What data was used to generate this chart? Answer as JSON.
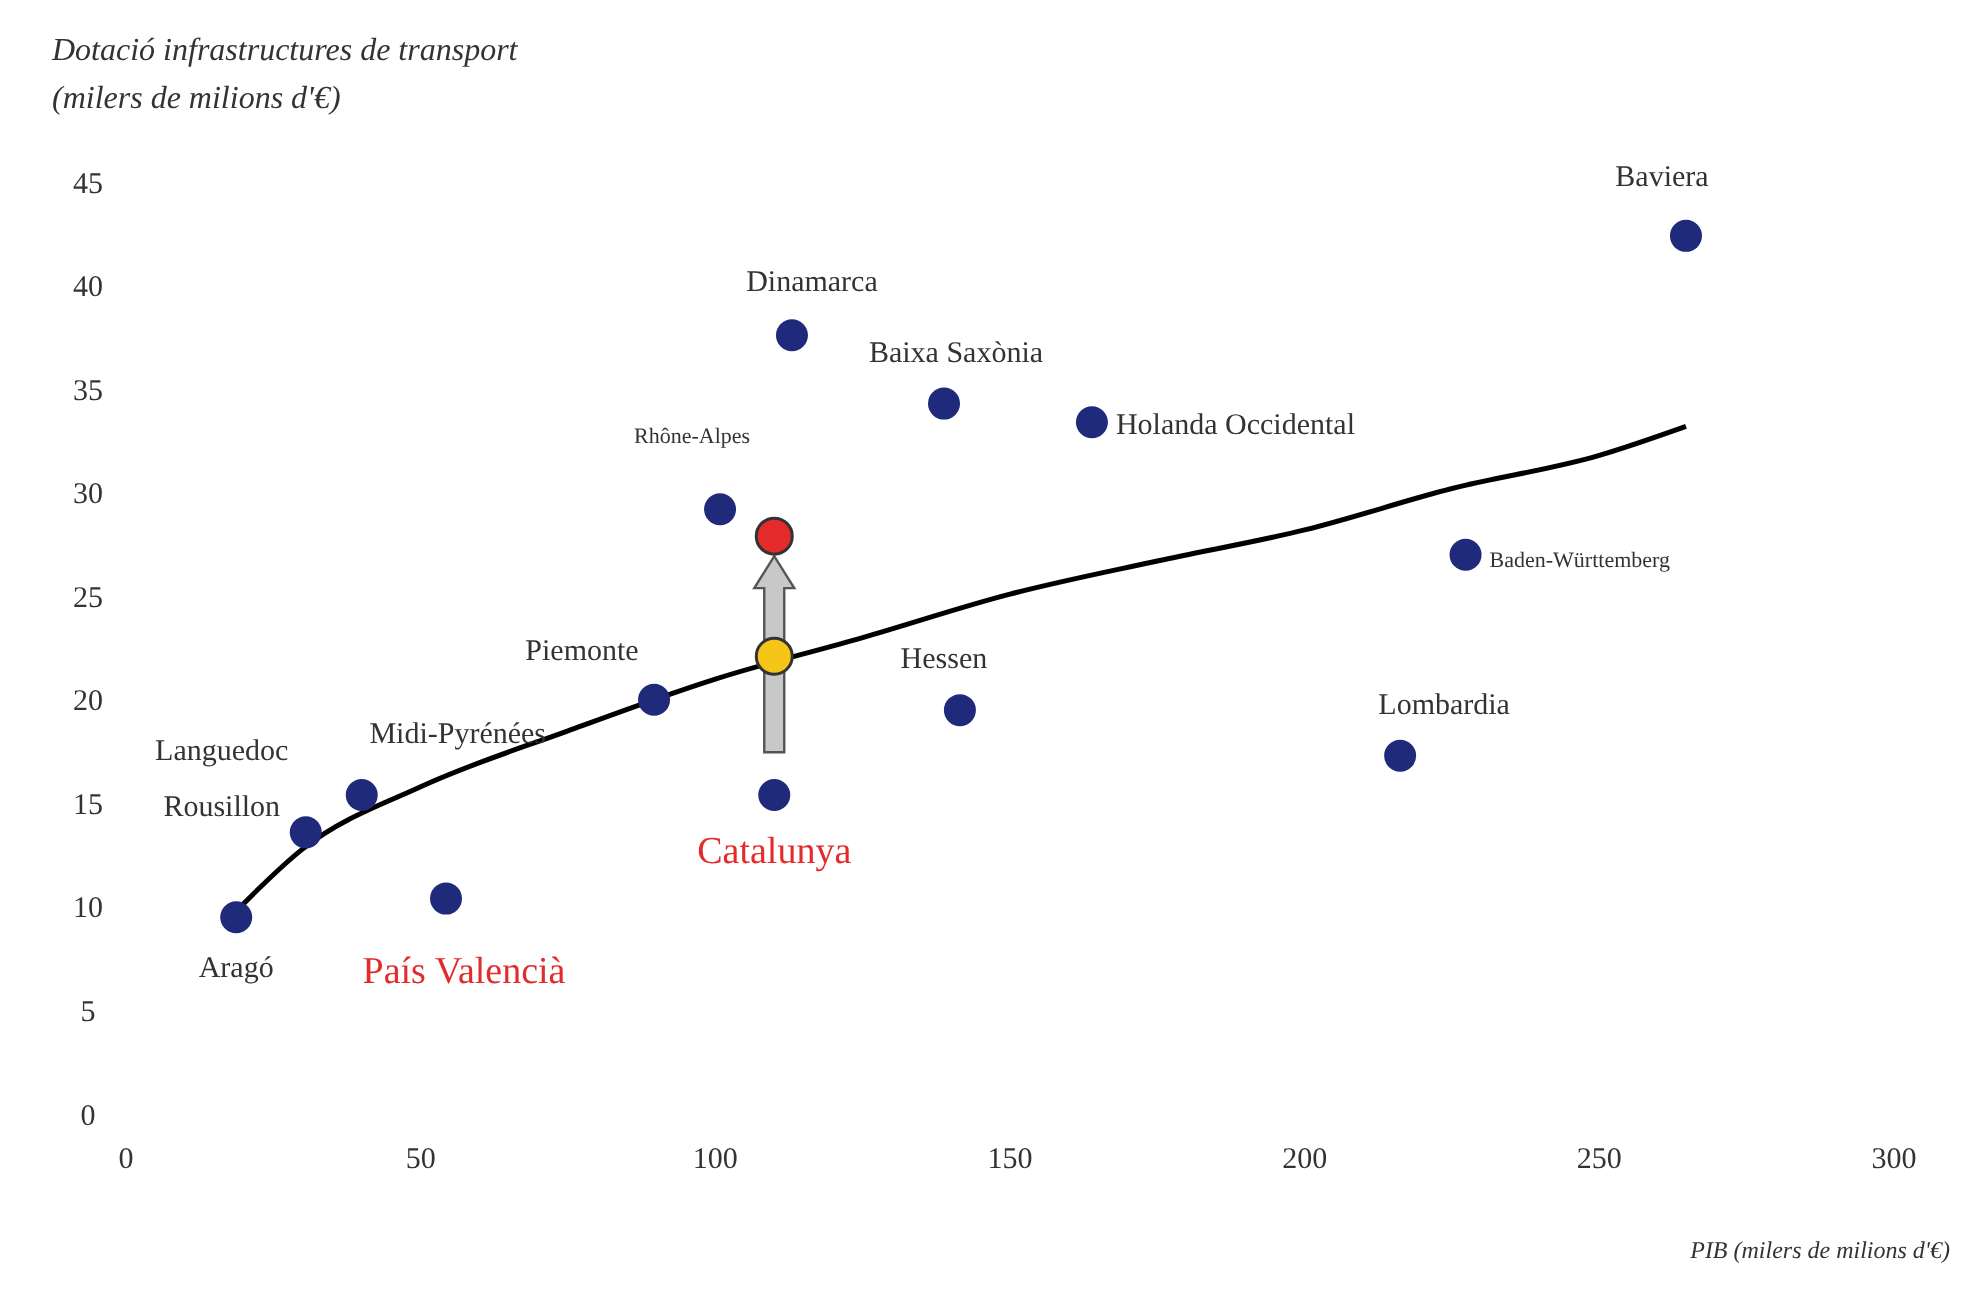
{
  "chart_data": {
    "type": "scatter",
    "ylabel": "Dotació infrastructures de transport\n(milers de milions d'€)",
    "xlabel": "PIB (milers de milions d'€)",
    "xlim": [
      0,
      300
    ],
    "xticks": [
      0,
      50,
      100,
      150,
      200,
      250,
      300
    ],
    "ylim": [
      0,
      45
    ],
    "yticks": [
      0,
      5,
      10,
      15,
      20,
      25,
      30,
      35,
      40,
      45
    ],
    "grid": false,
    "series": [
      {
        "type": "scatter",
        "color": "#1f2a7a",
        "x": [
          18.7,
          30.5,
          40,
          54.3,
          89.6,
          100.8,
          110,
          113,
          138.8,
          141.5,
          163.9,
          216.2,
          227.3,
          264.7
        ],
        "values": [
          9.5,
          13.6,
          15.4,
          10.4,
          20,
          29.2,
          15.4,
          37.6,
          34.3,
          19.5,
          33.4,
          17.3,
          27,
          42.4
        ]
      },
      {
        "type": "scatter",
        "color": "#f5c518",
        "x": [
          110
        ],
        "values": [
          22.1
        ]
      },
      {
        "type": "scatter",
        "color": "#e32b2b",
        "x": [
          110
        ],
        "values": [
          27.9
        ]
      },
      {
        "type": "line",
        "color": "#000000",
        "x": [
          18.7,
          30,
          50,
          75,
          100,
          125,
          150,
          175,
          200,
          225,
          250,
          264.7
        ],
        "values": [
          9.8,
          12.8,
          15.8,
          18.5,
          21,
          23,
          25.1,
          26.7,
          28.2,
          30.2,
          31.8,
          33.2
        ]
      }
    ],
    "annotations": [
      {
        "text": "Aragó",
        "x": 18.7,
        "y": 9.5
      },
      {
        "text": "Languedoc\nRousillon",
        "x": 30.5,
        "y": 13.6
      },
      {
        "text": "Midi-Pyrénées",
        "x": 40,
        "y": 15.4
      },
      {
        "text": "País Valencià",
        "x": 54.3,
        "y": 10.4
      },
      {
        "text": "Piemonte",
        "x": 89.6,
        "y": 20
      },
      {
        "text": "Rhône-Alpes",
        "x": 100.8,
        "y": 29.2
      },
      {
        "text": "Catalunya",
        "x": 110,
        "y": 15.4
      },
      {
        "text": "Dinamarca",
        "x": 113,
        "y": 37.6
      },
      {
        "text": "Baixa Saxònia",
        "x": 138.8,
        "y": 34.3
      },
      {
        "text": "Hessen",
        "x": 141.5,
        "y": 19.5
      },
      {
        "text": "Holanda Occidental",
        "x": 163.9,
        "y": 33.4
      },
      {
        "text": "Lombardia",
        "x": 216.2,
        "y": 17.3
      },
      {
        "text": "Baden-Württemberg",
        "x": 227.3,
        "y": 27
      },
      {
        "text": "Baviera",
        "x": 264.7,
        "y": 42.4
      }
    ]
  }
}
